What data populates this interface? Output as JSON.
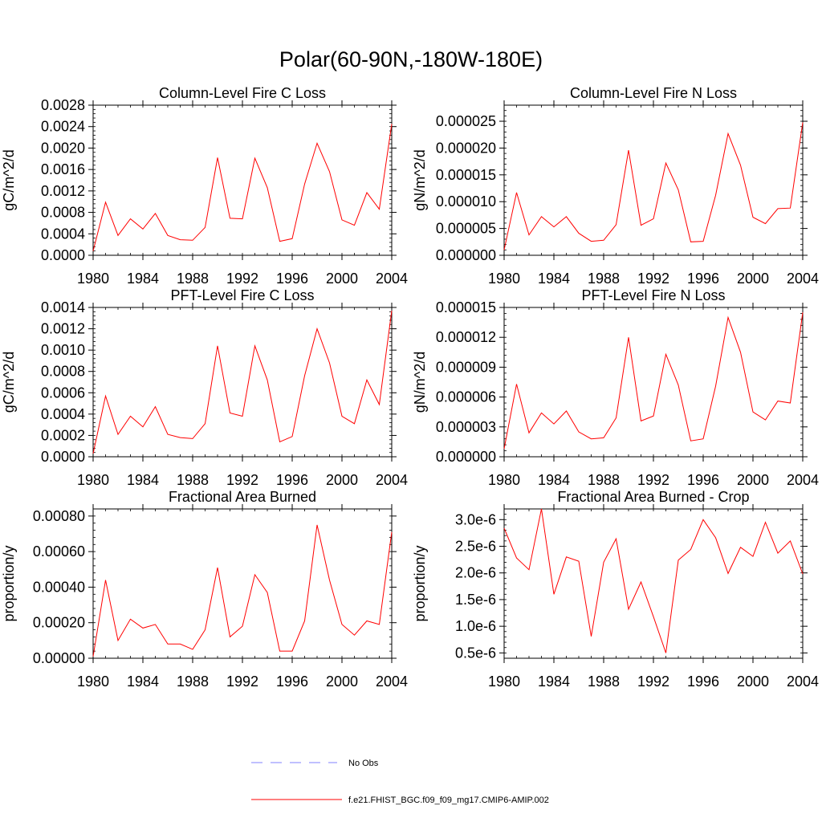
{
  "figure_title": "Polar(60-90N,-180W-180E)",
  "legend": {
    "obs_label": "No Obs",
    "model_label": "f.e21.FHIST_BGC.f09_f09_mg17.CMIP6-AMIP.002",
    "obs_color": "#8080ff",
    "model_color": "#ff0000"
  },
  "chart_data": [
    {
      "type": "line",
      "title": "Column-Level Fire C Loss",
      "ylabel": "gC/m^2/d",
      "xlabel": "",
      "xlim": [
        1980,
        2004
      ],
      "ylim": [
        0,
        0.0028
      ],
      "xticks": [
        1980,
        1984,
        1988,
        1992,
        1996,
        2000,
        2004
      ],
      "xtick_labels": [
        "1980",
        "1984",
        "1988",
        "1992",
        "1996",
        "2000",
        "2004"
      ],
      "yticks": [
        0,
        0.0004,
        0.0008,
        0.0012,
        0.0016,
        0.002,
        0.0024,
        0.0028
      ],
      "ytick_labels": [
        "0.0000",
        "0.0004",
        "0.0008",
        "0.0012",
        "0.0016",
        "0.0020",
        "0.0024",
        "0.0028"
      ],
      "x": [
        1980,
        1981,
        1982,
        1983,
        1984,
        1985,
        1986,
        1987,
        1988,
        1989,
        1990,
        1991,
        1992,
        1993,
        1994,
        1995,
        1996,
        1997,
        1998,
        1999,
        2000,
        2001,
        2002,
        2003,
        2004
      ],
      "series": [
        {
          "name": "f.e21.FHIST_BGC.f09_f09_mg17.CMIP6-AMIP.002",
          "values": [
            8e-05,
            0.00099,
            0.00037,
            0.00068,
            0.00049,
            0.00078,
            0.00037,
            0.00029,
            0.00028,
            0.00052,
            0.00182,
            0.00069,
            0.00068,
            0.00181,
            0.00126,
            0.00026,
            0.00031,
            0.00133,
            0.00209,
            0.00156,
            0.00066,
            0.00056,
            0.00117,
            0.00086,
            0.00245
          ]
        }
      ]
    },
    {
      "type": "line",
      "title": "Column-Level Fire N Loss",
      "ylabel": "gN/m^2/d",
      "xlabel": "",
      "xlim": [
        1980,
        2004
      ],
      "ylim": [
        0,
        2.8e-05
      ],
      "xticks": [
        1980,
        1984,
        1988,
        1992,
        1996,
        2000,
        2004
      ],
      "xtick_labels": [
        "1980",
        "1984",
        "1988",
        "1992",
        "1996",
        "2000",
        "2004"
      ],
      "yticks": [
        0,
        5e-06,
        1e-05,
        1.5e-05,
        2e-05,
        2.5e-05
      ],
      "ytick_labels": [
        "0.000000",
        "0.000005",
        "0.000010",
        "0.000015",
        "0.000020",
        "0.000025"
      ],
      "x": [
        1980,
        1981,
        1982,
        1983,
        1984,
        1985,
        1986,
        1987,
        1988,
        1989,
        1990,
        1991,
        1992,
        1993,
        1994,
        1995,
        1996,
        1997,
        1998,
        1999,
        2000,
        2001,
        2002,
        2003,
        2004
      ],
      "series": [
        {
          "name": "f.e21.FHIST_BGC.f09_f09_mg17.CMIP6-AMIP.002",
          "values": [
            1e-06,
            1.17e-05,
            3.8e-06,
            7.2e-06,
            5.3e-06,
            7.2e-06,
            4.1e-06,
            2.6e-06,
            2.8e-06,
            5.7e-06,
            1.96e-05,
            5.6e-06,
            6.8e-06,
            1.72e-05,
            1.22e-05,
            2.5e-06,
            2.6e-06,
            1.12e-05,
            2.27e-05,
            1.68e-05,
            7.1e-06,
            5.9e-06,
            8.7e-06,
            8.8e-06,
            2.48e-05
          ]
        }
      ]
    },
    {
      "type": "line",
      "title": "PFT-Level Fire C Loss",
      "ylabel": "gC/m^2/d",
      "xlabel": "",
      "xlim": [
        1980,
        2004
      ],
      "ylim": [
        0,
        0.0014
      ],
      "xticks": [
        1980,
        1984,
        1988,
        1992,
        1996,
        2000,
        2004
      ],
      "xtick_labels": [
        "1980",
        "1984",
        "1988",
        "1992",
        "1996",
        "2000",
        "2004"
      ],
      "yticks": [
        0,
        0.0002,
        0.0004,
        0.0006,
        0.0008,
        0.001,
        0.0012,
        0.0014
      ],
      "ytick_labels": [
        "0.0000",
        "0.0002",
        "0.0004",
        "0.0006",
        "0.0008",
        "0.0010",
        "0.0012",
        "0.0014"
      ],
      "x": [
        1980,
        1981,
        1982,
        1983,
        1984,
        1985,
        1986,
        1987,
        1988,
        1989,
        1990,
        1991,
        1992,
        1993,
        1994,
        1995,
        1996,
        1997,
        1998,
        1999,
        2000,
        2001,
        2002,
        2003,
        2004
      ],
      "series": [
        {
          "name": "f.e21.FHIST_BGC.f09_f09_mg17.CMIP6-AMIP.002",
          "values": [
            3e-05,
            0.00057,
            0.00021,
            0.00038,
            0.00028,
            0.00047,
            0.00021,
            0.00018,
            0.00017,
            0.00031,
            0.00104,
            0.00041,
            0.00038,
            0.00104,
            0.00072,
            0.00014,
            0.00019,
            0.00076,
            0.0012,
            0.00088,
            0.00038,
            0.00031,
            0.00072,
            0.00049,
            0.00137
          ]
        }
      ]
    },
    {
      "type": "line",
      "title": "PFT-Level Fire N Loss",
      "ylabel": "gN/m^2/d",
      "xlabel": "",
      "xlim": [
        1980,
        2004
      ],
      "ylim": [
        0,
        1.5e-05
      ],
      "xticks": [
        1980,
        1984,
        1988,
        1992,
        1996,
        2000,
        2004
      ],
      "xtick_labels": [
        "1980",
        "1984",
        "1988",
        "1992",
        "1996",
        "2000",
        "2004"
      ],
      "yticks": [
        0,
        3e-06,
        6e-06,
        9e-06,
        1.2e-05,
        1.5e-05
      ],
      "ytick_labels": [
        "0.000000",
        "0.000003",
        "0.000006",
        "0.000009",
        "0.000012",
        "0.000015"
      ],
      "x": [
        1980,
        1981,
        1982,
        1983,
        1984,
        1985,
        1986,
        1987,
        1988,
        1989,
        1990,
        1991,
        1992,
        1993,
        1994,
        1995,
        1996,
        1997,
        1998,
        1999,
        2000,
        2001,
        2002,
        2003,
        2004
      ],
      "series": [
        {
          "name": "f.e21.FHIST_BGC.f09_f09_mg17.CMIP6-AMIP.002",
          "values": [
            8e-07,
            7.3e-06,
            2.4e-06,
            4.4e-06,
            3.3e-06,
            4.6e-06,
            2.5e-06,
            1.8e-06,
            1.9e-06,
            3.9e-06,
            1.2e-05,
            3.6e-06,
            4.1e-06,
            1.03e-05,
            7.2e-06,
            1.6e-06,
            1.8e-06,
            7.1e-06,
            1.4e-05,
            1.05e-05,
            4.5e-06,
            3.7e-06,
            5.6e-06,
            5.4e-06,
            1.45e-05
          ]
        }
      ]
    },
    {
      "type": "line",
      "title": "Fractional Area Burned",
      "ylabel": "proportion/y",
      "xlabel": "",
      "xlim": [
        1980,
        2004
      ],
      "ylim": [
        0,
        0.00084
      ],
      "xticks": [
        1980,
        1984,
        1988,
        1992,
        1996,
        2000,
        2004
      ],
      "xtick_labels": [
        "1980",
        "1984",
        "1988",
        "1992",
        "1996",
        "2000",
        "2004"
      ],
      "yticks": [
        0,
        0.0002,
        0.0004,
        0.0006,
        0.0008
      ],
      "ytick_labels": [
        "0.00000",
        "0.00020",
        "0.00040",
        "0.00060",
        "0.00080"
      ],
      "x": [
        1980,
        1981,
        1982,
        1983,
        1984,
        1985,
        1986,
        1987,
        1988,
        1989,
        1990,
        1991,
        1992,
        1993,
        1994,
        1995,
        1996,
        1997,
        1998,
        1999,
        2000,
        2001,
        2002,
        2003,
        2004
      ],
      "series": [
        {
          "name": "f.e21.FHIST_BGC.f09_f09_mg17.CMIP6-AMIP.002",
          "values": [
            1e-05,
            0.00044,
            0.0001,
            0.00022,
            0.00017,
            0.00019,
            8e-05,
            8e-05,
            5e-05,
            0.00016,
            0.00051,
            0.00012,
            0.00018,
            0.00047,
            0.00037,
            4e-05,
            4e-05,
            0.00021,
            0.00075,
            0.00044,
            0.00019,
            0.00013,
            0.00021,
            0.00019,
            0.00071
          ]
        }
      ]
    },
    {
      "type": "line",
      "title": "Fractional Area Burned - Crop",
      "ylabel": "proportion/y",
      "xlabel": "",
      "xlim": [
        1980,
        2004
      ],
      "ylim": [
        4e-07,
        3.2e-06
      ],
      "xticks": [
        1980,
        1984,
        1988,
        1992,
        1996,
        2000,
        2004
      ],
      "xtick_labels": [
        "1980",
        "1984",
        "1988",
        "1992",
        "1996",
        "2000",
        "2004"
      ],
      "yticks": [
        5e-07,
        1e-06,
        1.5e-06,
        2e-06,
        2.5e-06,
        3e-06
      ],
      "ytick_labels": [
        "0.5e-6",
        "1.0e-6",
        "1.5e-6",
        "2.0e-6",
        "2.5e-6",
        "3.0e-6"
      ],
      "x": [
        1980,
        1981,
        1982,
        1983,
        1984,
        1985,
        1986,
        1987,
        1988,
        1989,
        1990,
        1991,
        1992,
        1993,
        1994,
        1995,
        1996,
        1997,
        1998,
        1999,
        2000,
        2001,
        2002,
        2003,
        2004
      ],
      "series": [
        {
          "name": "f.e21.FHIST_BGC.f09_f09_mg17.CMIP6-AMIP.002",
          "values": [
            2.84e-06,
            2.28e-06,
            2.06e-06,
            3.2e-06,
            1.6e-06,
            2.3e-06,
            2.22e-06,
            8.1e-07,
            2.2e-06,
            2.64e-06,
            1.32e-06,
            1.83e-06,
            1.18e-06,
            5e-07,
            2.24e-06,
            2.44e-06,
            3e-06,
            2.66e-06,
            1.99e-06,
            2.48e-06,
            2.31e-06,
            2.95e-06,
            2.37e-06,
            2.6e-06,
            1.98e-06
          ]
        }
      ]
    }
  ]
}
